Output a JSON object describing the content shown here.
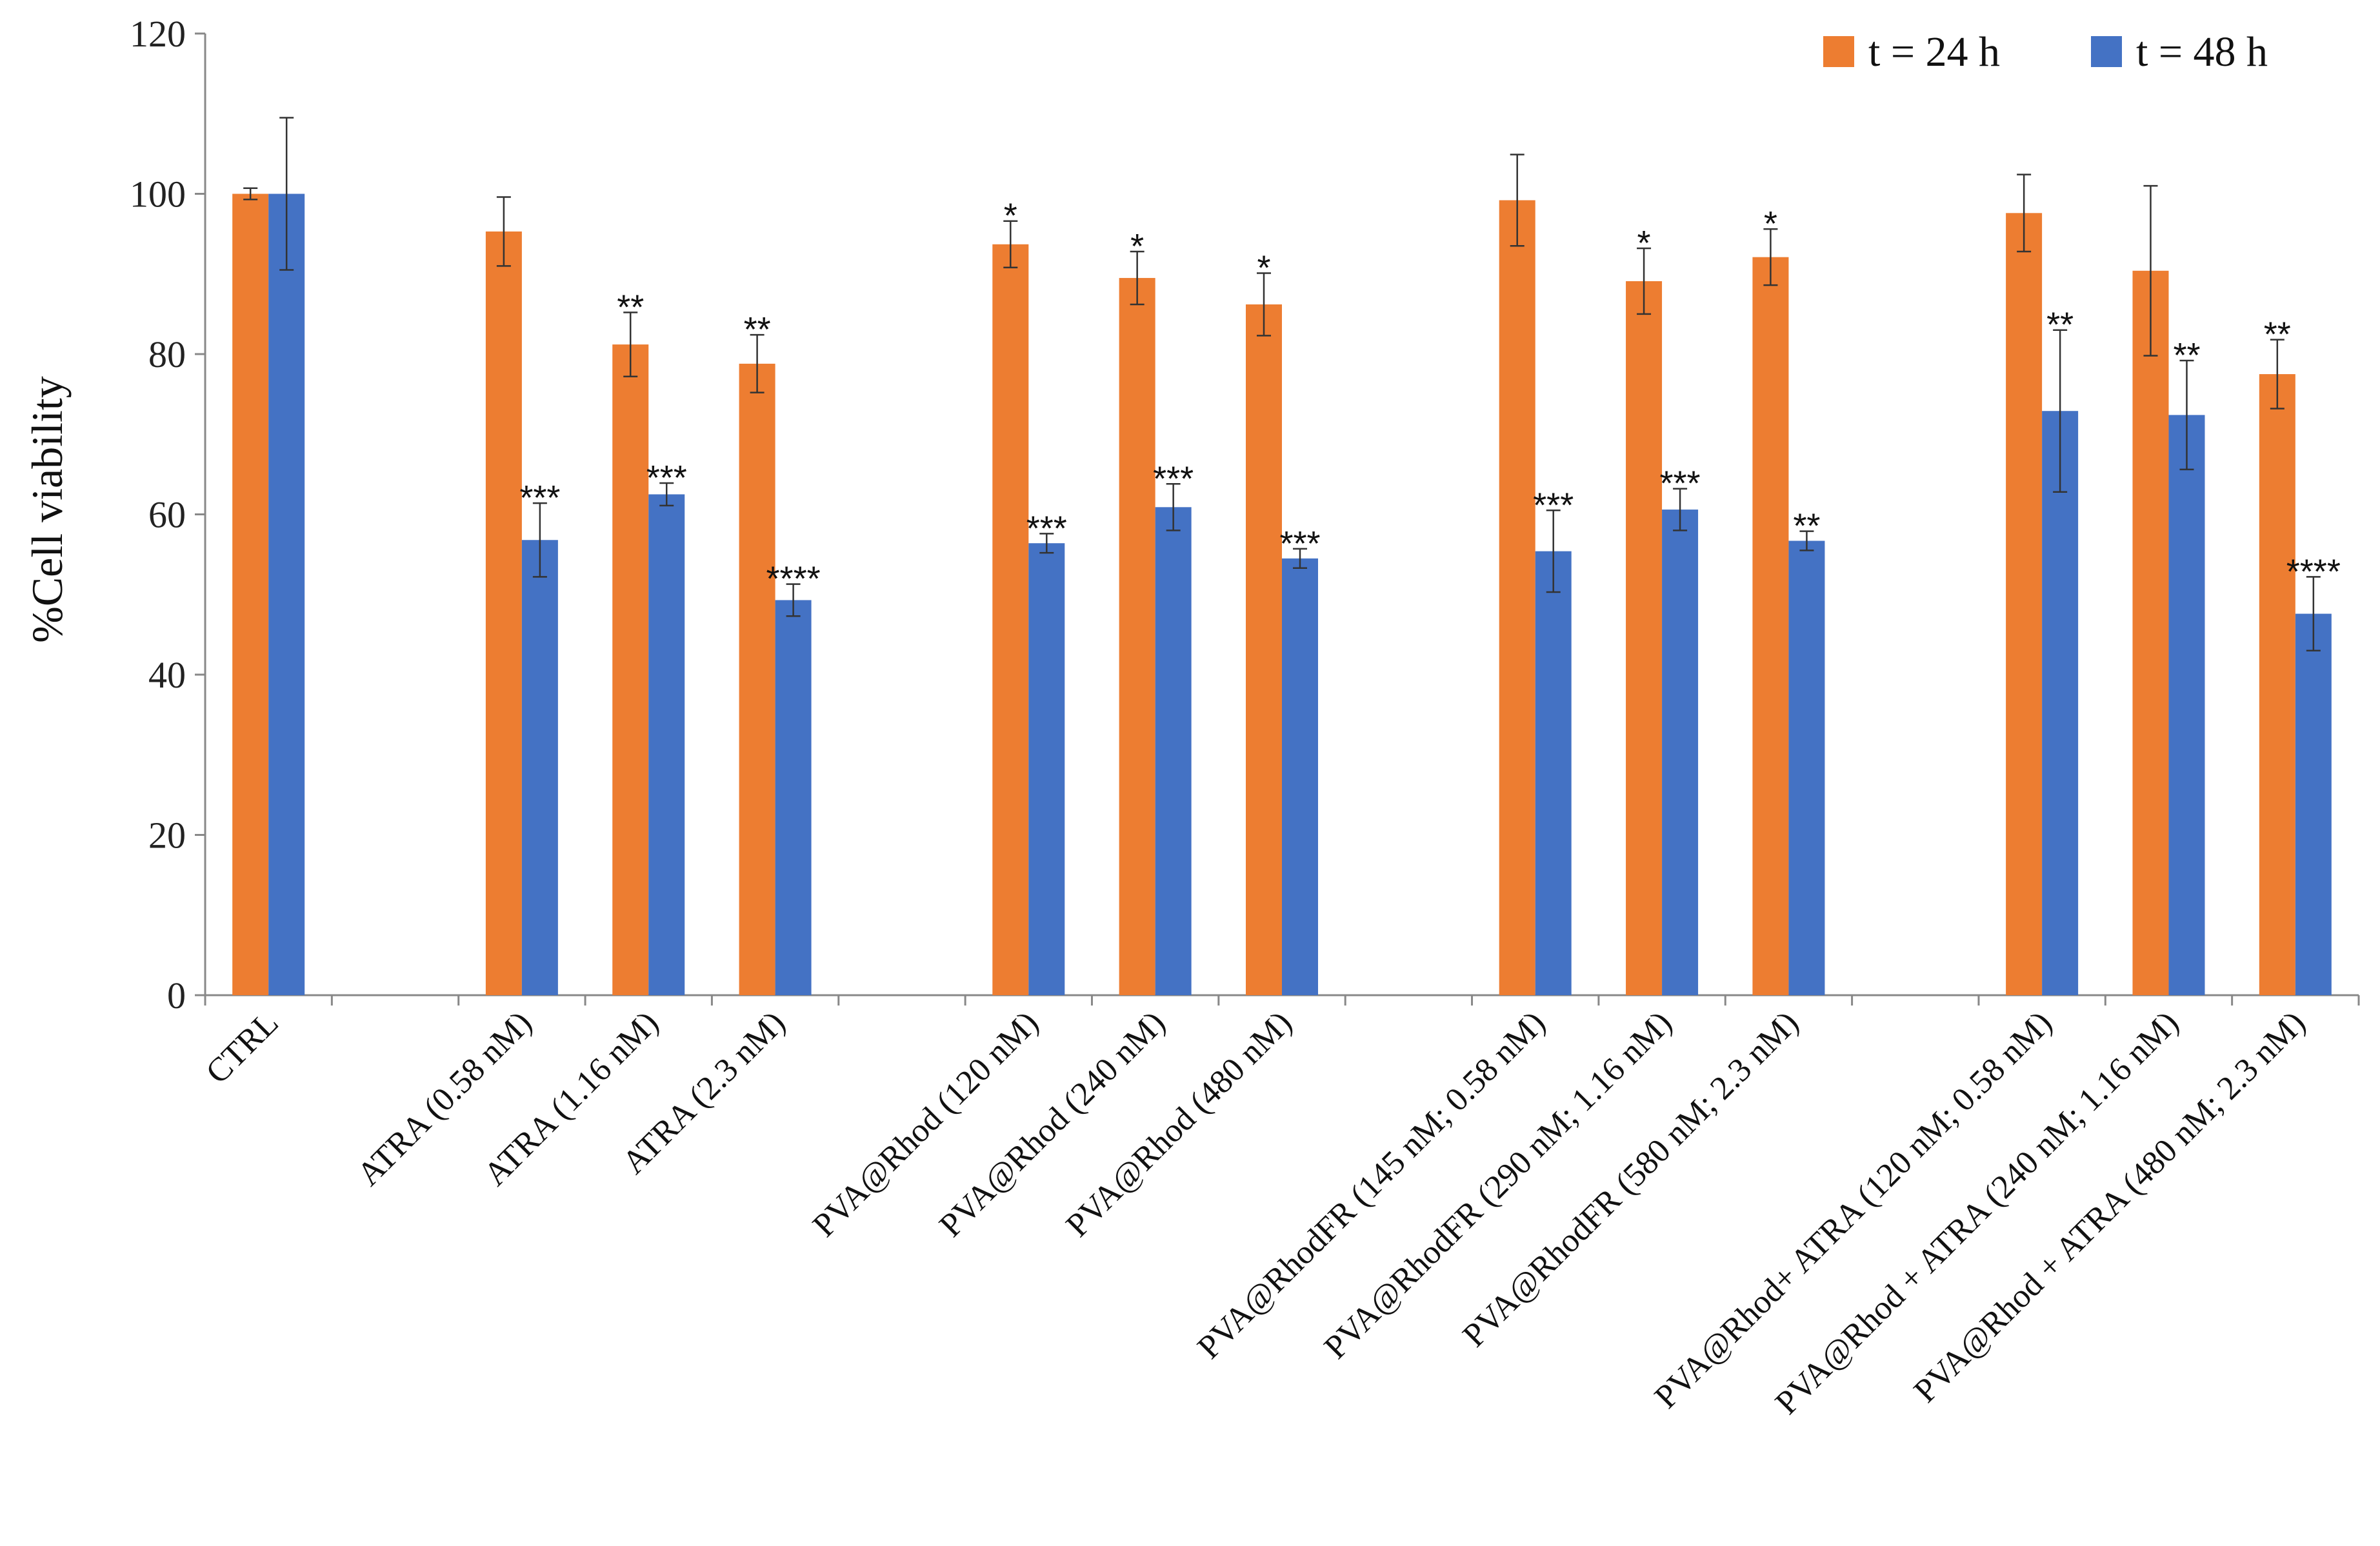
{
  "chart_data": {
    "type": "bar",
    "title": "",
    "xlabel": "",
    "ylabel": "%Cell viability",
    "ylim": [
      0,
      120
    ],
    "yticks": [
      0,
      20,
      40,
      60,
      80,
      100,
      120
    ],
    "grid": false,
    "legend_position": "top-right",
    "categories": [
      "CTRL",
      "",
      "ATRA (0.58 nM)",
      "ATRA (1.16 nM)",
      "ATRA (2.3 nM)",
      "",
      "PVA@Rhod (120 nM)",
      "PVA@Rhod (240 nM)",
      "PVA@Rhod (480 nM)",
      "",
      "PVA@RhodFR (145 nM; 0.58 nM)",
      "PVA@RhodFR (290 nM; 1.16 nM)",
      "PVA@RhodFR (580 nM; 2.3 nM)",
      "",
      "PVA@Rhod+ ATRA (120 nM; 0.58 nM)",
      "PVA@Rhod + ATRA (240 nM; 1.16 nM)",
      "PVA@Rhod + ATRA (480 nM; 2.3 nM)"
    ],
    "series": [
      {
        "name": "t = 24 h",
        "color": "#ED7D31",
        "values": [
          100,
          null,
          95.3,
          81.2,
          78.8,
          null,
          93.7,
          89.5,
          86.2,
          null,
          99.2,
          89.1,
          92.1,
          null,
          97.6,
          90.4,
          77.5
        ],
        "errors": [
          0.7,
          null,
          4.3,
          4.0,
          3.6,
          null,
          2.9,
          3.3,
          3.9,
          null,
          5.7,
          4.1,
          3.5,
          null,
          4.8,
          10.6,
          4.3
        ],
        "significance": [
          "",
          "",
          "",
          "**",
          "**",
          "",
          "*",
          "*",
          "*",
          "",
          "",
          "*",
          "*",
          "",
          "",
          "",
          "**"
        ]
      },
      {
        "name": "t = 48 h",
        "color": "#4472C4",
        "values": [
          100,
          null,
          56.8,
          62.5,
          49.3,
          null,
          56.4,
          60.9,
          54.5,
          null,
          55.4,
          60.6,
          56.7,
          null,
          72.9,
          72.4,
          47.6
        ],
        "errors": [
          9.5,
          null,
          4.6,
          1.4,
          2.0,
          null,
          1.2,
          2.9,
          1.2,
          null,
          5.1,
          2.6,
          1.2,
          null,
          10.1,
          6.8,
          4.6
        ],
        "significance": [
          "",
          "",
          "***",
          "***",
          "****",
          "",
          "***",
          "***",
          "***",
          "",
          "***",
          "***",
          "**",
          "",
          "**",
          "**",
          "****"
        ]
      }
    ]
  }
}
